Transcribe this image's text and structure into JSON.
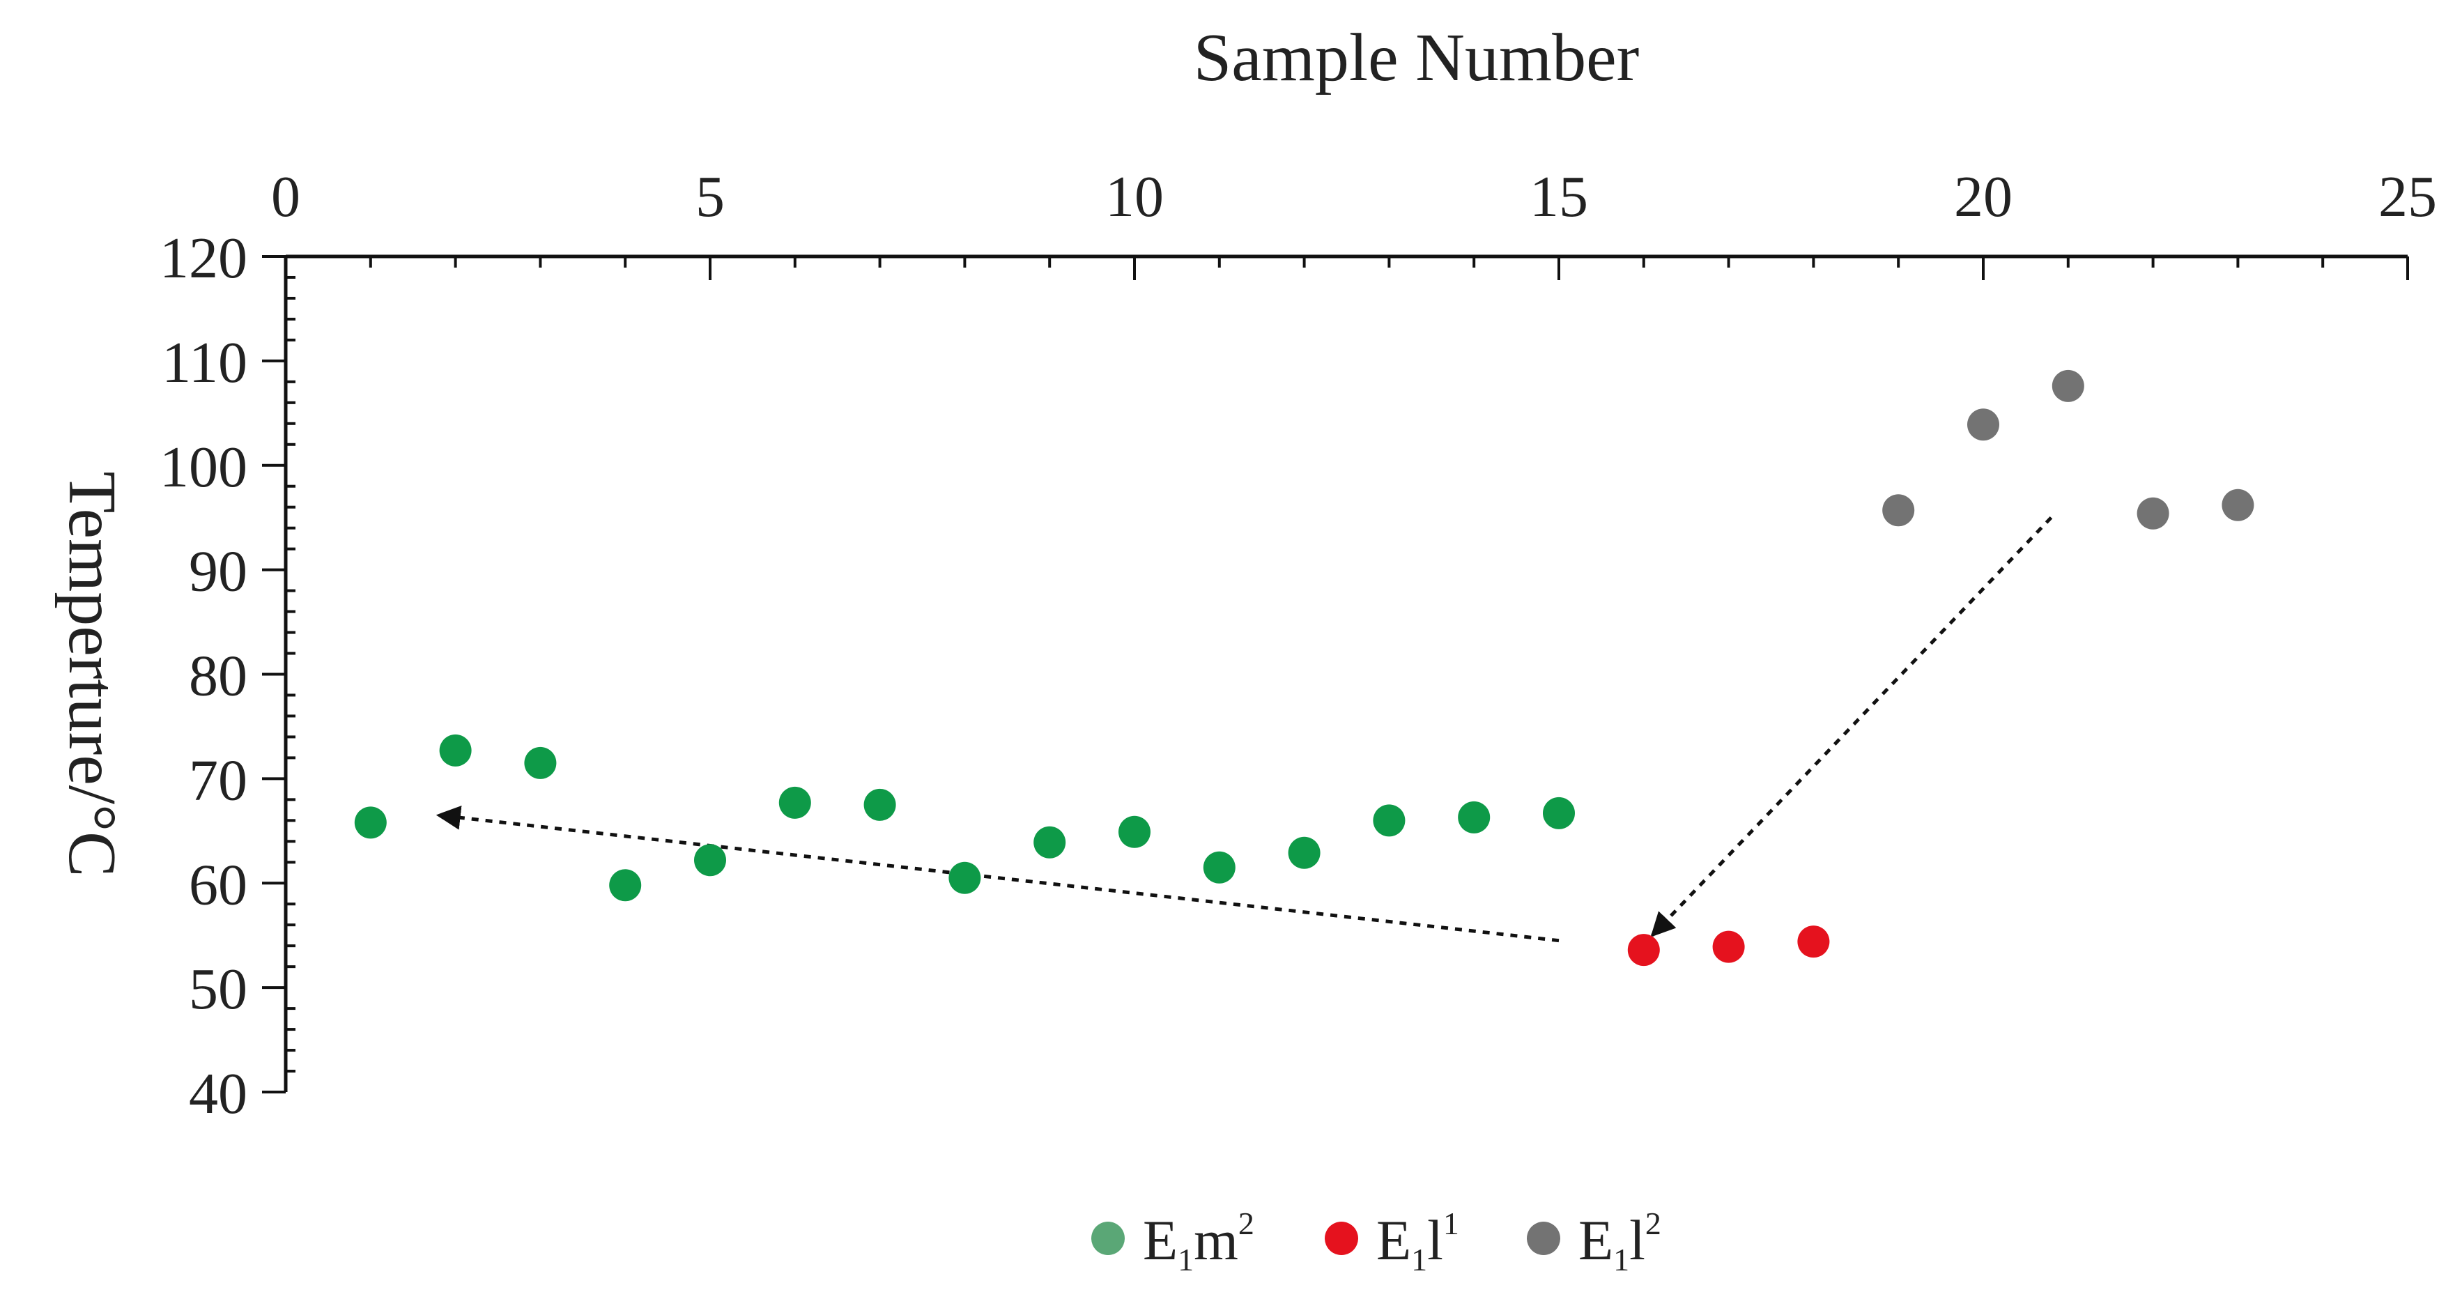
{
  "chart_data": {
    "type": "scatter",
    "xlabel": "Sample Number",
    "ylabel": "Temperture/°C",
    "xlim": [
      0,
      25
    ],
    "ylim": [
      40,
      120
    ],
    "xticks": [
      0,
      5,
      10,
      15,
      20,
      25
    ],
    "yticks": [
      40,
      50,
      60,
      70,
      80,
      90,
      100,
      110,
      120
    ],
    "x_axis_position": "top",
    "grid": false,
    "legend_position": "bottom-center",
    "series": [
      {
        "name": "E1m2",
        "legend": {
          "base": "E",
          "sub": "1",
          "main": "m",
          "sup": "2"
        },
        "color": "#0e9a48",
        "legend_color": "#5aa776",
        "points": [
          [
            1,
            65.8
          ],
          [
            2,
            72.7
          ],
          [
            3,
            71.5
          ],
          [
            4,
            59.8
          ],
          [
            5,
            62.2
          ],
          [
            6,
            67.7
          ],
          [
            7,
            67.5
          ],
          [
            8,
            60.5
          ],
          [
            9,
            63.9
          ],
          [
            10,
            64.9
          ],
          [
            11,
            61.5
          ],
          [
            12,
            62.9
          ],
          [
            13,
            66.0
          ],
          [
            14,
            66.3
          ],
          [
            15,
            66.7
          ]
        ]
      },
      {
        "name": "E1l1",
        "legend": {
          "base": "E",
          "sub": "1",
          "main": "l",
          "sup": "1"
        },
        "color": "#e5121e",
        "legend_color": "#e5121e",
        "points": [
          [
            16,
            53.6
          ],
          [
            17,
            53.9
          ],
          [
            18,
            54.4
          ]
        ]
      },
      {
        "name": "E1l2",
        "legend": {
          "base": "E",
          "sub": "1",
          "main": "l",
          "sup": "2"
        },
        "color": "#737373",
        "legend_color": "#737373",
        "points": [
          [
            19,
            95.7
          ],
          [
            20,
            103.9
          ],
          [
            21,
            107.6
          ],
          [
            22,
            95.4
          ],
          [
            23,
            96.2
          ]
        ]
      }
    ],
    "annotations": [
      {
        "kind": "dotted-arrow",
        "from": [
          15,
          54.5
        ],
        "to": [
          1.8,
          66.5
        ]
      },
      {
        "kind": "dotted-arrow",
        "from": [
          20.8,
          95
        ],
        "to": [
          16.1,
          55
        ]
      }
    ]
  }
}
